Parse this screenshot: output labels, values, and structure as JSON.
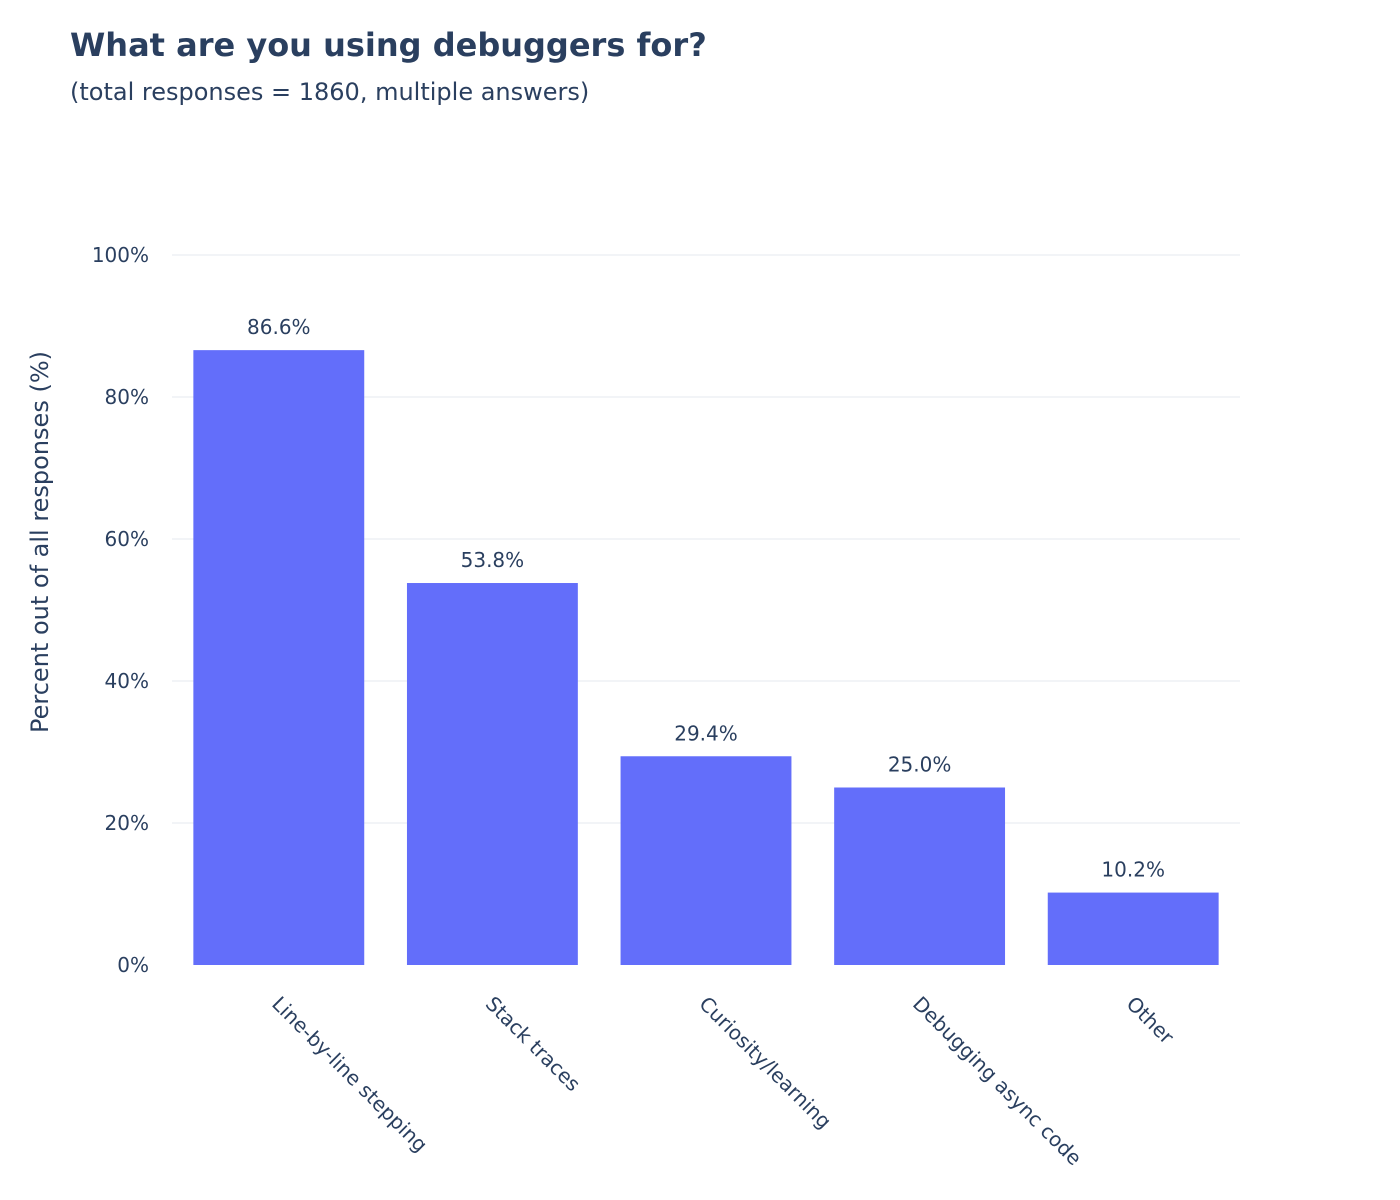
{
  "chart_data": {
    "type": "bar",
    "title": "What are you using debuggers for?",
    "subtitle": "(total responses = 1860, multiple answers)",
    "xlabel": "",
    "ylabel": "Percent out of all responses (%)",
    "categories": [
      "Line-by-line stepping",
      "Stack traces",
      "Curiosity/learning",
      "Debugging async code",
      "Other"
    ],
    "values": [
      86.6,
      53.8,
      29.4,
      25.0,
      10.2
    ],
    "data_labels": [
      "86.6%",
      "53.8%",
      "29.4%",
      "25.0%",
      "10.2%"
    ],
    "ylim": [
      0,
      100
    ],
    "yticks": [
      0,
      20,
      40,
      60,
      80,
      100
    ],
    "ytick_labels": [
      "0%",
      "20%",
      "40%",
      "60%",
      "80%",
      "100%"
    ],
    "grid": true,
    "legend": "none",
    "bar_color": "#636efa"
  }
}
